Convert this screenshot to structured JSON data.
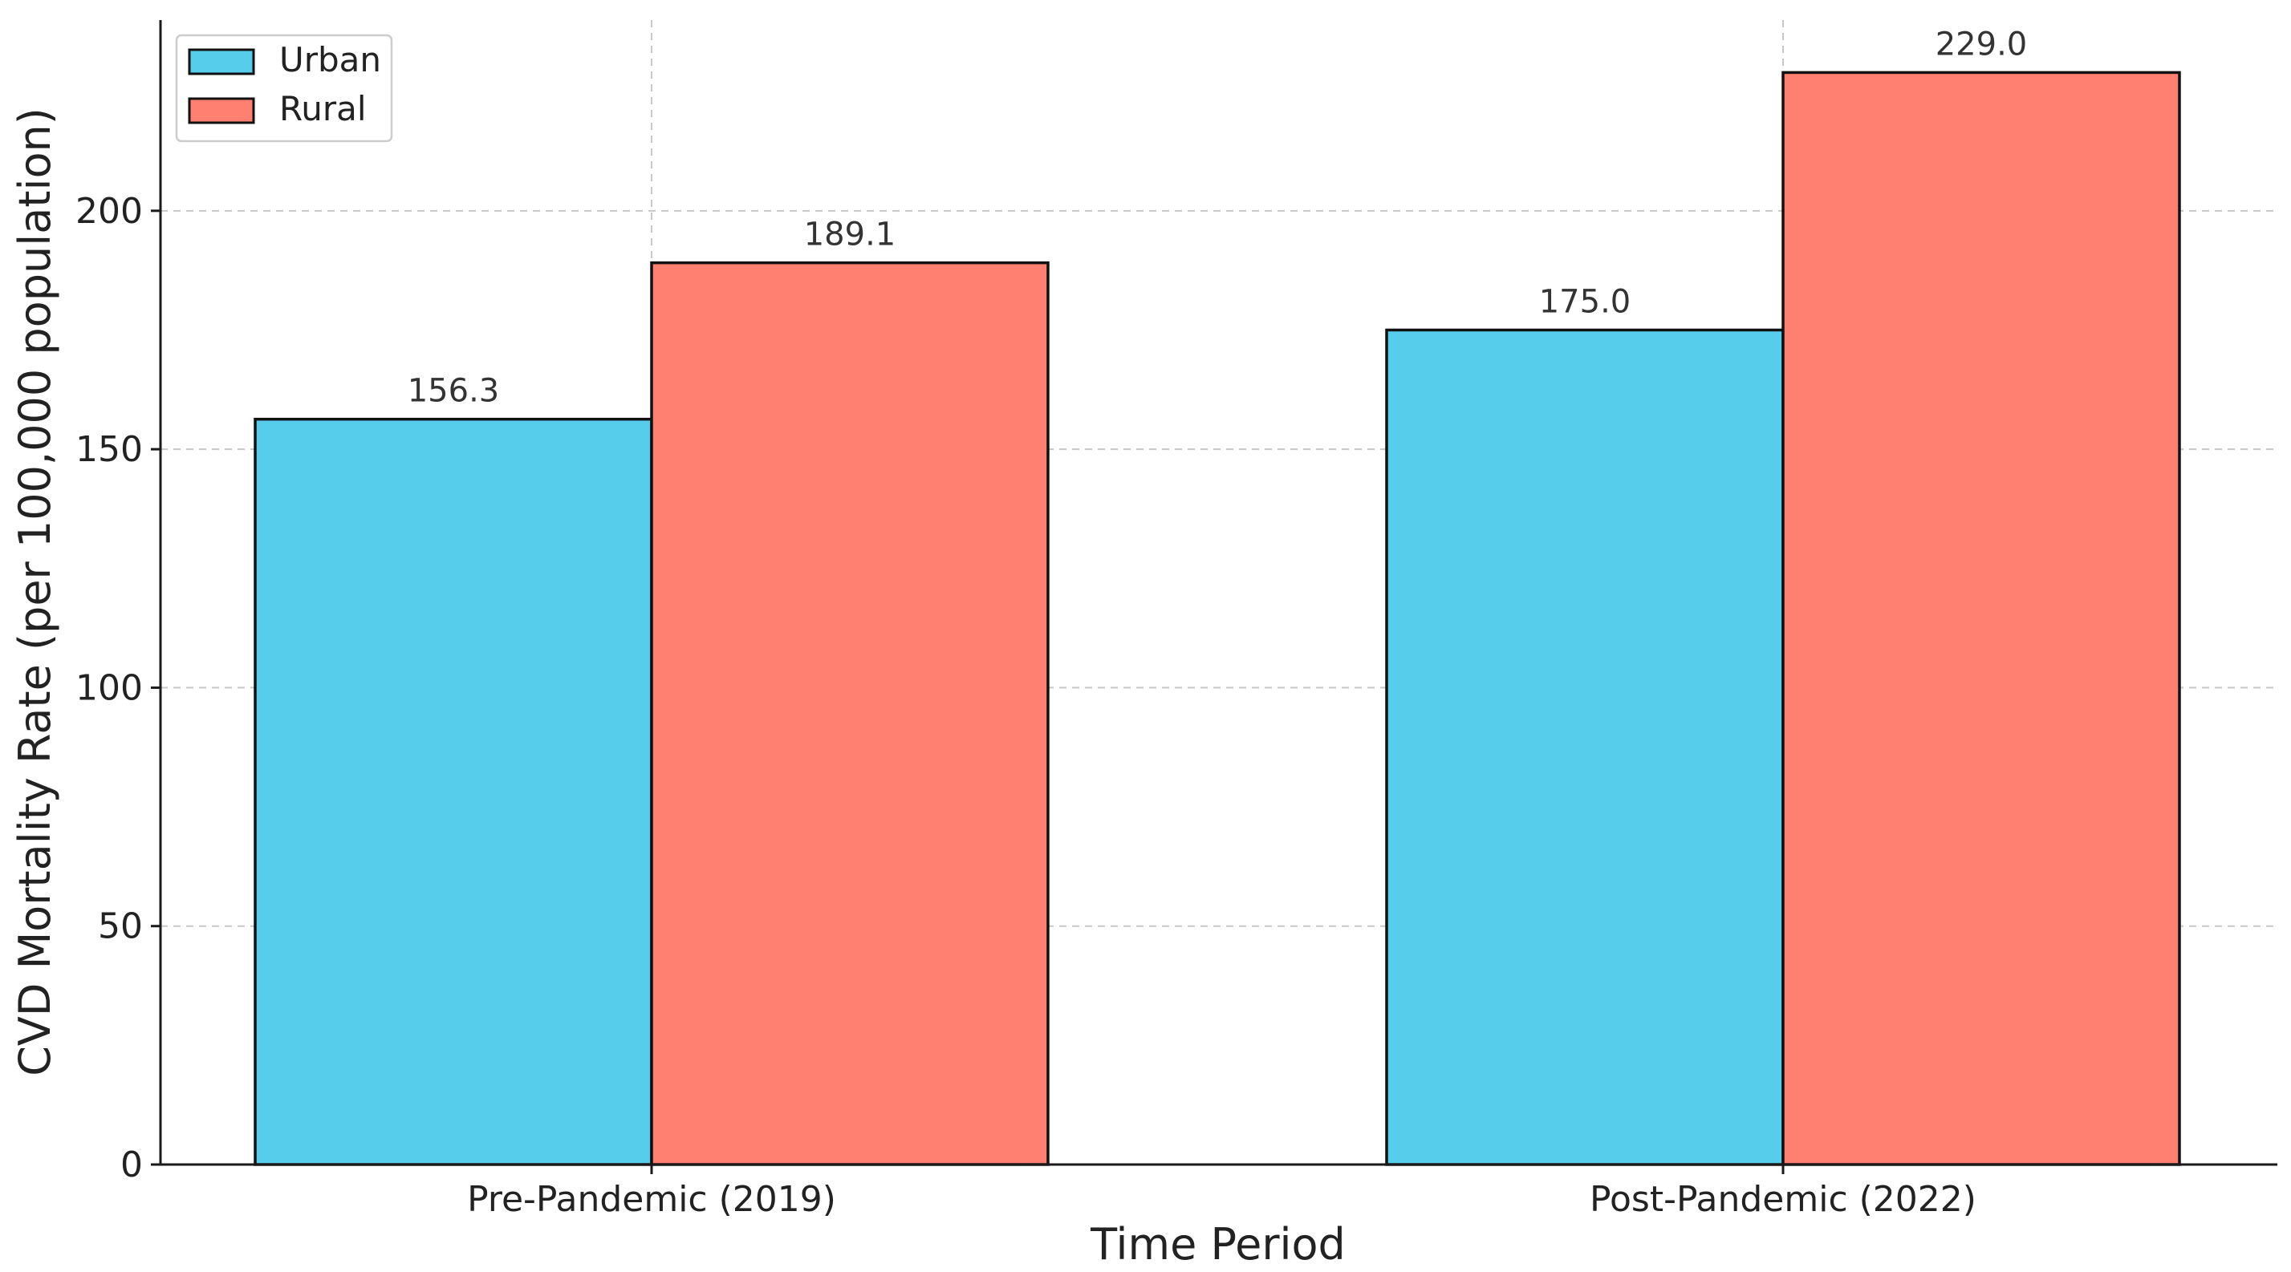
{
  "chart_data": {
    "type": "bar",
    "title": "",
    "xlabel": "Time Period",
    "ylabel": "CVD Mortality Rate (per 100,000 population)",
    "categories": [
      "Pre-Pandemic (2019)",
      "Post-Pandemic (2022)"
    ],
    "series": [
      {
        "name": "Urban",
        "values": [
          156.3,
          175.0
        ],
        "color": "#57CDEC"
      },
      {
        "name": "Rural",
        "values": [
          189.1,
          229.0
        ],
        "color": "#FF8070"
      }
    ],
    "data_labels": [
      [
        "156.3",
        "175.0"
      ],
      [
        "189.1",
        "229.0"
      ]
    ],
    "ylim": [
      0,
      240
    ],
    "yticks": [
      0,
      50,
      100,
      150,
      200
    ],
    "grid": true,
    "legend_position": "top-left"
  }
}
